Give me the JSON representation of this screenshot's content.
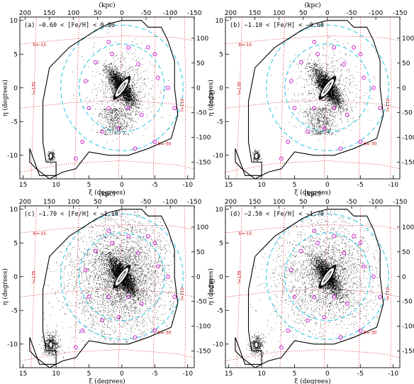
{
  "figure": {
    "top_axis_label": "(kpc)",
    "left_axis_label": "η (degrees)",
    "right_axis_label": "(kpc)",
    "bottom_axis_label": "ξ (degrees)"
  },
  "chart_data": [
    {
      "type": "scatter",
      "panel": "(a)",
      "title": "−0.60 < [Fe/H] < 0.00",
      "xlabel": "ξ (degrees)",
      "ylabel": "η (degrees)",
      "xlim": [
        15.5,
        -11
      ],
      "ylim": [
        -13.5,
        10.5
      ],
      "xticks": [
        15,
        10,
        5,
        0,
        -5,
        -10
      ],
      "yticks": [
        10,
        5,
        0,
        -5,
        -10
      ],
      "top_ticks_kpc": [
        200,
        150,
        100,
        50,
        0,
        -50,
        -100,
        -150
      ],
      "right_ticks_kpc": [
        100,
        50,
        0,
        -50,
        -100,
        -150
      ],
      "grid_labels": {
        "b_upper": "b=-15",
        "l_left": "l=135",
        "l_right": "l=110",
        "b_lower": "b=-30"
      },
      "density": "low"
    },
    {
      "type": "scatter",
      "panel": "(b)",
      "title": "−1.10 < [Fe/H] < −0.60",
      "xlabel": "ξ (degrees)",
      "ylabel": "η (degrees)",
      "xlim": [
        15.5,
        -11
      ],
      "ylim": [
        -13.5,
        10.5
      ],
      "xticks": [
        15,
        10,
        5,
        0,
        -5,
        -10
      ],
      "yticks": [
        10,
        5,
        0,
        -5,
        -10
      ],
      "top_ticks_kpc": [
        200,
        150,
        100,
        50,
        0,
        -50,
        -100,
        -150
      ],
      "right_ticks_kpc": [
        100,
        50,
        0,
        -50,
        -100,
        -150
      ],
      "grid_labels": {
        "b_upper": "b=-15",
        "l_left": "l=135",
        "l_right": "l=110",
        "b_lower": "b=-30"
      },
      "density": "low"
    },
    {
      "type": "scatter",
      "panel": "(c)",
      "title": "−1.70 < [Fe/H] < −1.10",
      "xlabel": "ξ (degrees)",
      "ylabel": "η (degrees)",
      "xlim": [
        15.5,
        -11
      ],
      "ylim": [
        -13.5,
        10.5
      ],
      "xticks": [
        15,
        10,
        5,
        0,
        -5,
        -10
      ],
      "yticks": [
        10,
        5,
        0,
        -5,
        -10
      ],
      "top_ticks_kpc": [
        200,
        150,
        100,
        50,
        0,
        -50,
        -100,
        -150
      ],
      "right_ticks_kpc": [
        100,
        50,
        0,
        -50,
        -100,
        -150
      ],
      "grid_labels": {
        "b_upper": "b=-15",
        "l_left": "l=135",
        "l_right": "l=110",
        "b_lower": "b=-30"
      },
      "density": "high"
    },
    {
      "type": "scatter",
      "panel": "(d)",
      "title": "−2.50 < [Fe/H] < −1.70",
      "xlabel": "ξ (degrees)",
      "ylabel": "η (degrees)",
      "xlim": [
        15.5,
        -11
      ],
      "ylim": [
        -13.5,
        10.5
      ],
      "xticks": [
        15,
        10,
        5,
        0,
        -5,
        -10
      ],
      "yticks": [
        10,
        5,
        0,
        -5,
        -10
      ],
      "top_ticks_kpc": [
        200,
        150,
        100,
        50,
        0,
        -50,
        -100,
        -150
      ],
      "right_ticks_kpc": [
        100,
        50,
        0,
        -50,
        -100,
        -150
      ],
      "grid_labels": {
        "b_upper": "b=-15",
        "l_left": "l=135",
        "l_right": "l=110",
        "b_lower": "b=-30"
      },
      "density": "medium"
    }
  ],
  "shared": {
    "survey_footprint_deg": [
      [
        12.5,
        -13
      ],
      [
        10,
        -13
      ],
      [
        10,
        -11
      ],
      [
        11.5,
        -11
      ],
      [
        12,
        -8
      ],
      [
        12,
        -2
      ],
      [
        11,
        3
      ],
      [
        8,
        6
      ],
      [
        4,
        8.5
      ],
      [
        2,
        9.5
      ],
      [
        0,
        10
      ],
      [
        -3,
        10
      ],
      [
        -4,
        9
      ],
      [
        -6,
        9
      ],
      [
        -7,
        7
      ],
      [
        -8,
        4
      ],
      [
        -8,
        0
      ],
      [
        -8.5,
        -4
      ],
      [
        -7.5,
        -7.5
      ],
      [
        -4,
        -9
      ],
      [
        -1,
        -10
      ],
      [
        2,
        -10
      ],
      [
        5,
        -9.5
      ],
      [
        7,
        -12
      ],
      [
        9,
        -12.5
      ],
      [
        11,
        -13.5
      ],
      [
        13,
        -12
      ],
      [
        14,
        -11
      ],
      [
        14,
        -9
      ],
      [
        12.5,
        -13
      ]
    ],
    "circle_radii_deg": [
      6.5,
      9.3
    ],
    "m31_center_deg": [
      0,
      0
    ],
    "m33_center_deg": [
      10.8,
      -10.1
    ],
    "m32_deg": [
      0.0,
      -0.5
    ],
    "ngc205_deg": [
      0.0,
      0.8
    ],
    "dwarf_galaxies_deg": [
      [
        2,
        6.8
      ],
      [
        -1,
        6
      ],
      [
        -4,
        6
      ],
      [
        4,
        3.8
      ],
      [
        -5,
        5
      ],
      [
        5.5,
        1
      ],
      [
        -5.5,
        1.5
      ],
      [
        -7,
        0
      ],
      [
        5,
        -3
      ],
      [
        -3,
        -4
      ],
      [
        0.5,
        -6
      ],
      [
        3,
        -6.5
      ],
      [
        -5,
        -8
      ],
      [
        -2,
        -9
      ],
      [
        6,
        -8
      ],
      [
        7,
        -10.5
      ],
      [
        -8,
        -3
      ],
      [
        1.5,
        5
      ],
      [
        -2.5,
        3.5
      ],
      [
        2,
        -3
      ],
      [
        -1,
        -3
      ]
    ],
    "colors": {
      "footprint": "#000000",
      "circles": "#22c5e0",
      "grid": "#cc0000",
      "dwarfs": "#cc22cc",
      "stars": "#000000"
    }
  }
}
